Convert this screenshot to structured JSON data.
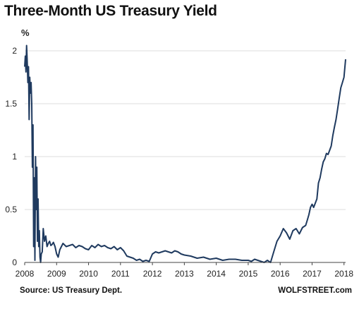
{
  "title": "Three-Month US Treasury Yield",
  "source": "Source: US Treasury Dept.",
  "brand": "WOLFSTREET.com",
  "chart_data": {
    "type": "line",
    "title": "Three-Month US Treasury Yield",
    "ylabel": "%",
    "xlim": [
      2008.0,
      2018.05
    ],
    "ylim": [
      0,
      2
    ],
    "y_ticks": [
      "0",
      "0.5",
      "1",
      "1.5",
      "2"
    ],
    "x_ticks": [
      "2008",
      "2009",
      "2010",
      "2011",
      "2012",
      "2013",
      "2014",
      "2015",
      "2016",
      "2017",
      "2018"
    ],
    "grid": true,
    "line_color": "#1f3a5f",
    "series": [
      {
        "x": [
          2008.0,
          2008.02,
          2008.04,
          2008.06,
          2008.08,
          2008.1,
          2008.12,
          2008.14,
          2008.16,
          2008.18,
          2008.2,
          2008.22,
          2008.24,
          2008.26,
          2008.28,
          2008.3,
          2008.32,
          2008.34,
          2008.36,
          2008.38,
          2008.4,
          2008.42,
          2008.44,
          2008.46,
          2008.48,
          2008.5,
          2008.52,
          2008.55,
          2008.58,
          2008.62,
          2008.66,
          2008.7,
          2008.74,
          2008.78,
          2008.82,
          2008.86,
          2008.9,
          2008.95,
          2009.0,
          2009.05,
          2009.1,
          2009.2,
          2009.3,
          2009.4,
          2009.5,
          2009.6,
          2009.7,
          2009.8,
          2009.9,
          2010.0,
          2010.1,
          2010.2,
          2010.3,
          2010.4,
          2010.5,
          2010.6,
          2010.7,
          2010.8,
          2010.9,
          2011.0,
          2011.1,
          2011.2,
          2011.3,
          2011.4,
          2011.5,
          2011.6,
          2011.7,
          2011.8,
          2011.9,
          2012.0,
          2012.1,
          2012.2,
          2012.3,
          2012.4,
          2012.5,
          2012.6,
          2012.7,
          2012.8,
          2012.9,
          2013.0,
          2013.2,
          2013.4,
          2013.6,
          2013.8,
          2014.0,
          2014.2,
          2014.4,
          2014.6,
          2014.8,
          2015.0,
          2015.1,
          2015.2,
          2015.3,
          2015.4,
          2015.5,
          2015.6,
          2015.7,
          2015.8,
          2015.9,
          2016.0,
          2016.1,
          2016.2,
          2016.3,
          2016.4,
          2016.5,
          2016.6,
          2016.7,
          2016.8,
          2016.85,
          2016.9,
          2016.95,
          2017.0,
          2017.05,
          2017.1,
          2017.15,
          2017.2,
          2017.25,
          2017.3,
          2017.35,
          2017.4,
          2017.45,
          2017.5,
          2017.55,
          2017.6,
          2017.65,
          2017.7,
          2017.75,
          2017.8,
          2017.85,
          2017.9,
          2017.95,
          2018.0,
          2018.05
        ],
        "y": [
          1.85,
          1.95,
          1.8,
          2.05,
          1.9,
          1.7,
          1.85,
          1.35,
          1.75,
          1.6,
          1.7,
          1.5,
          0.9,
          1.3,
          0.15,
          0.8,
          0.02,
          1.0,
          0.5,
          0.9,
          0.2,
          0.6,
          0.15,
          0.3,
          0.05,
          0.0,
          0.08,
          0.1,
          0.32,
          0.2,
          0.25,
          0.15,
          0.18,
          0.2,
          0.16,
          0.17,
          0.19,
          0.15,
          0.08,
          0.05,
          0.12,
          0.18,
          0.15,
          0.16,
          0.17,
          0.14,
          0.16,
          0.15,
          0.13,
          0.12,
          0.16,
          0.14,
          0.17,
          0.15,
          0.16,
          0.14,
          0.13,
          0.15,
          0.12,
          0.14,
          0.11,
          0.06,
          0.05,
          0.04,
          0.02,
          0.03,
          0.01,
          0.02,
          0.01,
          0.08,
          0.1,
          0.09,
          0.1,
          0.11,
          0.1,
          0.09,
          0.11,
          0.1,
          0.08,
          0.07,
          0.06,
          0.04,
          0.05,
          0.03,
          0.04,
          0.02,
          0.03,
          0.03,
          0.02,
          0.02,
          0.01,
          0.03,
          0.02,
          0.01,
          0.0,
          0.02,
          0.0,
          0.1,
          0.2,
          0.25,
          0.32,
          0.28,
          0.22,
          0.3,
          0.32,
          0.27,
          0.33,
          0.35,
          0.4,
          0.45,
          0.52,
          0.55,
          0.52,
          0.56,
          0.6,
          0.75,
          0.8,
          0.88,
          0.95,
          0.98,
          1.03,
          1.02,
          1.06,
          1.1,
          1.2,
          1.28,
          1.35,
          1.45,
          1.55,
          1.65,
          1.7,
          1.75,
          1.92
        ]
      }
    ]
  }
}
